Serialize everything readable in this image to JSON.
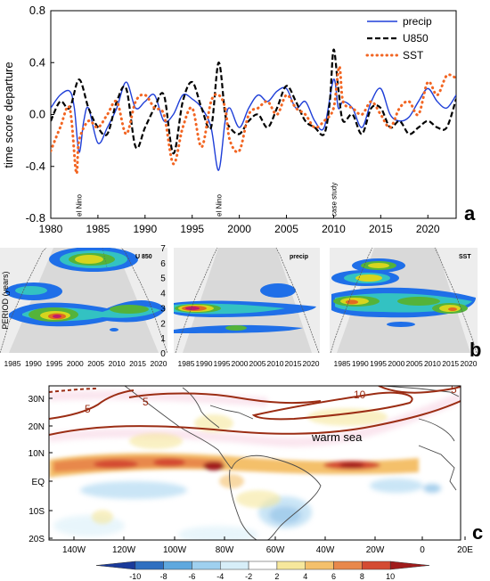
{
  "panel_letters": [
    "a",
    "b",
    "c"
  ],
  "chart_data": [
    {
      "type": "line",
      "panel": "a",
      "ylabel": "time score departure",
      "xlim": [
        1980,
        2023
      ],
      "ylim": [
        -0.8,
        0.8
      ],
      "yticks": [
        -0.8,
        -0.4,
        0.0,
        0.4,
        0.8
      ],
      "ytick_labels": [
        "-0.8",
        "-0.4",
        "0.0",
        "0.4",
        "0.8"
      ],
      "xticks": [
        1980,
        1985,
        1990,
        1995,
        2000,
        2005,
        2010,
        2015,
        2020
      ],
      "legend_position": "top-right",
      "annotations": [
        {
          "text": "el Nino",
          "x": 1983
        },
        {
          "text": "el Nino",
          "x": 1997.8
        },
        {
          "text": "case study",
          "x": 2010
        }
      ],
      "series": [
        {
          "name": "precip",
          "color": "#1f3fd8",
          "style": "solid",
          "x": [
            1980,
            1981,
            1982,
            1982.5,
            1983,
            1983.5,
            1984,
            1985,
            1986,
            1987,
            1988,
            1989,
            1990,
            1991,
            1992,
            1993,
            1994,
            1995,
            1996,
            1997,
            1997.8,
            1998.5,
            1999,
            2000,
            2001,
            2002,
            2003,
            2004,
            2005,
            2006,
            2007,
            2008,
            2009,
            2010,
            2010.5,
            2011,
            2012,
            2013,
            2014,
            2015,
            2016,
            2017,
            2018,
            2019,
            2020,
            2021,
            2022,
            2023
          ],
          "y": [
            0.05,
            0.15,
            0.18,
            0.05,
            -0.29,
            -0.05,
            0.05,
            -0.22,
            -0.1,
            0.05,
            0.25,
            0.05,
            0.1,
            0.15,
            -0.05,
            0.0,
            0.15,
            0.12,
            0.05,
            -0.1,
            -0.43,
            -0.05,
            0.05,
            -0.1,
            0.05,
            0.15,
            0.1,
            0.18,
            0.2,
            0.05,
            0.1,
            -0.05,
            -0.1,
            0.27,
            0.05,
            0.1,
            0.05,
            -0.1,
            0.1,
            0.2,
            0.0,
            -0.05,
            -0.02,
            0.1,
            0.2,
            0.1,
            0.05,
            0.15
          ]
        },
        {
          "name": "U850",
          "color": "#000000",
          "style": "dashed",
          "x": [
            1980,
            1981,
            1982,
            1983,
            1984,
            1985,
            1986,
            1987,
            1988,
            1989,
            1990,
            1991,
            1992,
            1993,
            1994,
            1995,
            1996,
            1997,
            1997.8,
            1998.5,
            1999,
            2000,
            2001,
            2002,
            2003,
            2004,
            2005,
            2006,
            2007,
            2008,
            2009,
            2009.6,
            2010,
            2010.5,
            2011,
            2012,
            2013,
            2014,
            2015,
            2016,
            2017,
            2018,
            2019,
            2020,
            2021,
            2022,
            2023
          ],
          "y": [
            -0.05,
            0.1,
            0.05,
            0.27,
            0.05,
            -0.1,
            -0.15,
            0.1,
            0.2,
            -0.25,
            -0.1,
            0.05,
            0.15,
            -0.3,
            0.1,
            0.25,
            0.05,
            -0.1,
            0.4,
            0.0,
            -0.1,
            -0.15,
            -0.05,
            0.0,
            -0.1,
            0.05,
            0.22,
            0.1,
            -0.05,
            -0.1,
            -0.15,
            0.1,
            0.5,
            0.2,
            -0.05,
            0.0,
            -0.15,
            0.05,
            0.05,
            -0.1,
            -0.05,
            -0.15,
            -0.1,
            -0.05,
            -0.1,
            -0.1,
            0.12
          ]
        },
        {
          "name": "SST",
          "color": "#f26522",
          "style": "dotted",
          "x": [
            1980,
            1981,
            1982,
            1982.7,
            1983,
            1984,
            1985,
            1986,
            1987,
            1988,
            1989,
            1990,
            1991,
            1992,
            1993,
            1994,
            1995,
            1996,
            1997,
            1997.8,
            1998.5,
            1999,
            2000,
            2001,
            2002,
            2003,
            2004,
            2005,
            2006,
            2007,
            2008,
            2009,
            2010,
            2010.6,
            2011,
            2012,
            2013,
            2014,
            2015,
            2016,
            2017,
            2018,
            2019,
            2020,
            2021,
            2022,
            2023
          ],
          "y": [
            -0.28,
            -0.1,
            0.05,
            -0.45,
            -0.2,
            -0.05,
            -0.1,
            0.0,
            0.1,
            -0.15,
            0.1,
            0.15,
            0.05,
            0.0,
            -0.38,
            -0.1,
            0.05,
            -0.25,
            0.1,
            0.15,
            0.05,
            -0.2,
            -0.28,
            0.0,
            0.05,
            0.1,
            0.0,
            0.15,
            0.05,
            0.0,
            -0.1,
            -0.05,
            0.05,
            0.37,
            0.1,
            0.05,
            0.0,
            0.1,
            0.0,
            -0.1,
            0.05,
            0.1,
            0.0,
            0.25,
            0.15,
            0.3,
            0.28
          ]
        }
      ]
    },
    {
      "type": "heatmap",
      "panel": "b",
      "ylabel": "PERIOD (years)",
      "yticks": [
        0,
        1,
        2,
        3,
        4,
        5,
        6,
        7
      ],
      "subplots": [
        {
          "title": "U 850",
          "xticks": [
            "1985",
            "1990",
            "1995",
            "2000",
            "2005",
            "2010",
            "2015",
            "2020"
          ]
        },
        {
          "title": "precip",
          "xticks": [
            "1985",
            "1990",
            "1995",
            "2000",
            "2005",
            "2010",
            "2015",
            "2020"
          ]
        },
        {
          "title": "SST",
          "xticks": [
            "1985",
            "1990",
            "1995",
            "2000",
            "2005",
            "2010",
            "2015",
            "2020"
          ]
        }
      ]
    },
    {
      "type": "heatmap",
      "panel": "c",
      "map_label": "warm sea",
      "contour_labels": [
        "5",
        "5",
        "10",
        "5"
      ],
      "lat_ticks": [
        "30N",
        "20N",
        "10N",
        "EQ",
        "10S",
        "20S"
      ],
      "lon_ticks": [
        "140W",
        "120W",
        "100W",
        "80W",
        "60W",
        "40W",
        "20W",
        "0",
        "20E"
      ],
      "colorbar": {
        "ticks": [
          "-10",
          "-8",
          "-6",
          "-4",
          "-2",
          "2",
          "4",
          "6",
          "8",
          "10"
        ],
        "colors": [
          "#1a3a9a",
          "#2f6fc0",
          "#5fa8de",
          "#9fd0ef",
          "#d7eef8",
          "#ffffff",
          "#f6e79c",
          "#f4c06b",
          "#e8884c",
          "#d44b32",
          "#a01c1c"
        ]
      }
    }
  ]
}
